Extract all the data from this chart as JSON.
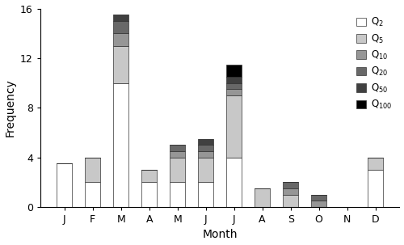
{
  "months": [
    "J",
    "F",
    "M",
    "A",
    "M",
    "J",
    "J",
    "A",
    "S",
    "O",
    "N",
    "D"
  ],
  "Q2": [
    3.5,
    2,
    10,
    2,
    2,
    2,
    4,
    0,
    0,
    0,
    0,
    3
  ],
  "Q5": [
    0,
    2,
    3,
    1,
    2,
    2,
    5,
    1.5,
    1,
    0,
    0,
    1
  ],
  "Q10": [
    0,
    0,
    1,
    0,
    0.5,
    0.5,
    0.5,
    0,
    0.5,
    0.5,
    0,
    0
  ],
  "Q20": [
    0,
    0,
    1,
    0,
    0.5,
    0.5,
    0.5,
    0,
    0.5,
    0.5,
    0,
    0
  ],
  "Q50": [
    0,
    0,
    0.5,
    0,
    0,
    0.5,
    0.5,
    0,
    0,
    0,
    0,
    0
  ],
  "Q100": [
    0,
    0,
    0,
    0,
    0,
    0,
    1,
    0,
    0,
    0,
    0,
    0
  ],
  "colors": {
    "Q2": "#ffffff",
    "Q5": "#c8c8c8",
    "Q10": "#969696",
    "Q20": "#686868",
    "Q50": "#404040",
    "Q100": "#000000"
  },
  "ylim": [
    0,
    16
  ],
  "yticks": [
    0,
    4,
    8,
    12,
    16
  ],
  "ylabel": "Frequency",
  "xlabel": "Month",
  "legend_labels": [
    "Q$_2$",
    "Q$_5$",
    "Q$_{10}$",
    "Q$_{20}$",
    "Q$_{50}$",
    "Q$_{100}$"
  ],
  "figsize": [
    5.0,
    3.03
  ],
  "dpi": 100
}
